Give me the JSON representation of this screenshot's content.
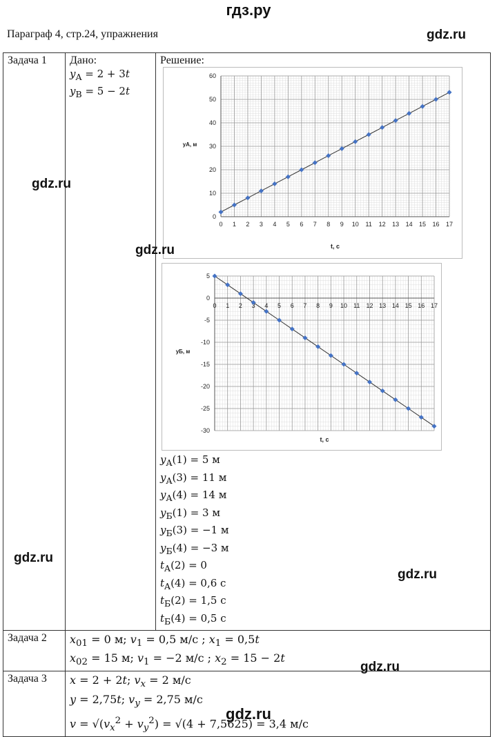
{
  "site": {
    "top_title": "гдз.ру",
    "watermark": "gdz.ru"
  },
  "header": "Параграф 4, стр.24, упражнения",
  "tasks": [
    {
      "label": "Задача 1",
      "given_title": "Дано:",
      "solution_title": "Решение:",
      "given": [
        "y_A = 2 + 3t",
        "y_B = 5 − 2t"
      ],
      "results": [
        "y_A(1) = 5 м",
        "y_A(3) = 11 м",
        "y_A(4) = 14 м",
        "y_Б(1) = 3 м",
        "y_Б(3) = −1 м",
        "y_Б(4) = −3 м",
        "t_A(2) = 0",
        "t_A(4) = 0,6 с",
        "t_Б(2) = 1,5 с",
        "t_Б(4) = 0,5 с"
      ]
    },
    {
      "label": "Задача 2",
      "lines": [
        "x01 = 0 м; v1 = 0,5 м/с; x1 = 0,5t",
        "x02 = 15 м; v1 = −2 м/с; x2 = 15 − 2t"
      ]
    },
    {
      "label": "Задача 3",
      "lines": [
        "x = 2 + 2t; vx = 2 м/с",
        "y = 2,75t; vy = 2,75 м/с",
        "v = √(vx² + vy²) = √(4 + 7,5625) = 3,4 м/с"
      ]
    }
  ],
  "chart_data": [
    {
      "type": "line",
      "xlabel": "t, c",
      "ylabel": "yA, м",
      "xlim": [
        0,
        17
      ],
      "ylim": [
        0,
        60
      ],
      "xticks": [
        0,
        1,
        2,
        3,
        4,
        5,
        6,
        7,
        8,
        9,
        10,
        11,
        12,
        13,
        14,
        15,
        16,
        17
      ],
      "yticks": [
        0,
        10,
        20,
        30,
        40,
        50,
        60
      ],
      "x": [
        0,
        1,
        2,
        3,
        4,
        5,
        6,
        7,
        8,
        9,
        10,
        11,
        12,
        13,
        14,
        15,
        16,
        17
      ],
      "y": [
        2,
        5,
        8,
        11,
        14,
        17,
        20,
        23,
        26,
        29,
        32,
        35,
        38,
        41,
        44,
        47,
        50,
        53
      ],
      "color": "#4472c4",
      "grid": true
    },
    {
      "type": "line",
      "xlabel": "t, c",
      "ylabel": "yБ, м",
      "xlim": [
        0,
        17
      ],
      "ylim": [
        -30,
        5
      ],
      "xticks": [
        0,
        1,
        2,
        3,
        4,
        5,
        6,
        7,
        8,
        9,
        10,
        11,
        12,
        13,
        14,
        15,
        16,
        17
      ],
      "yticks": [
        5,
        0,
        -5,
        -10,
        -15,
        -20,
        -25,
        -30
      ],
      "x": [
        0,
        1,
        2,
        3,
        4,
        5,
        6,
        7,
        8,
        9,
        10,
        11,
        12,
        13,
        14,
        15,
        16,
        17
      ],
      "y": [
        5,
        3,
        1,
        -1,
        -3,
        -5,
        -7,
        -9,
        -11,
        -13,
        -15,
        -17,
        -19,
        -21,
        -23,
        -25,
        -27,
        -29
      ],
      "color": "#4472c4",
      "grid": true
    }
  ]
}
